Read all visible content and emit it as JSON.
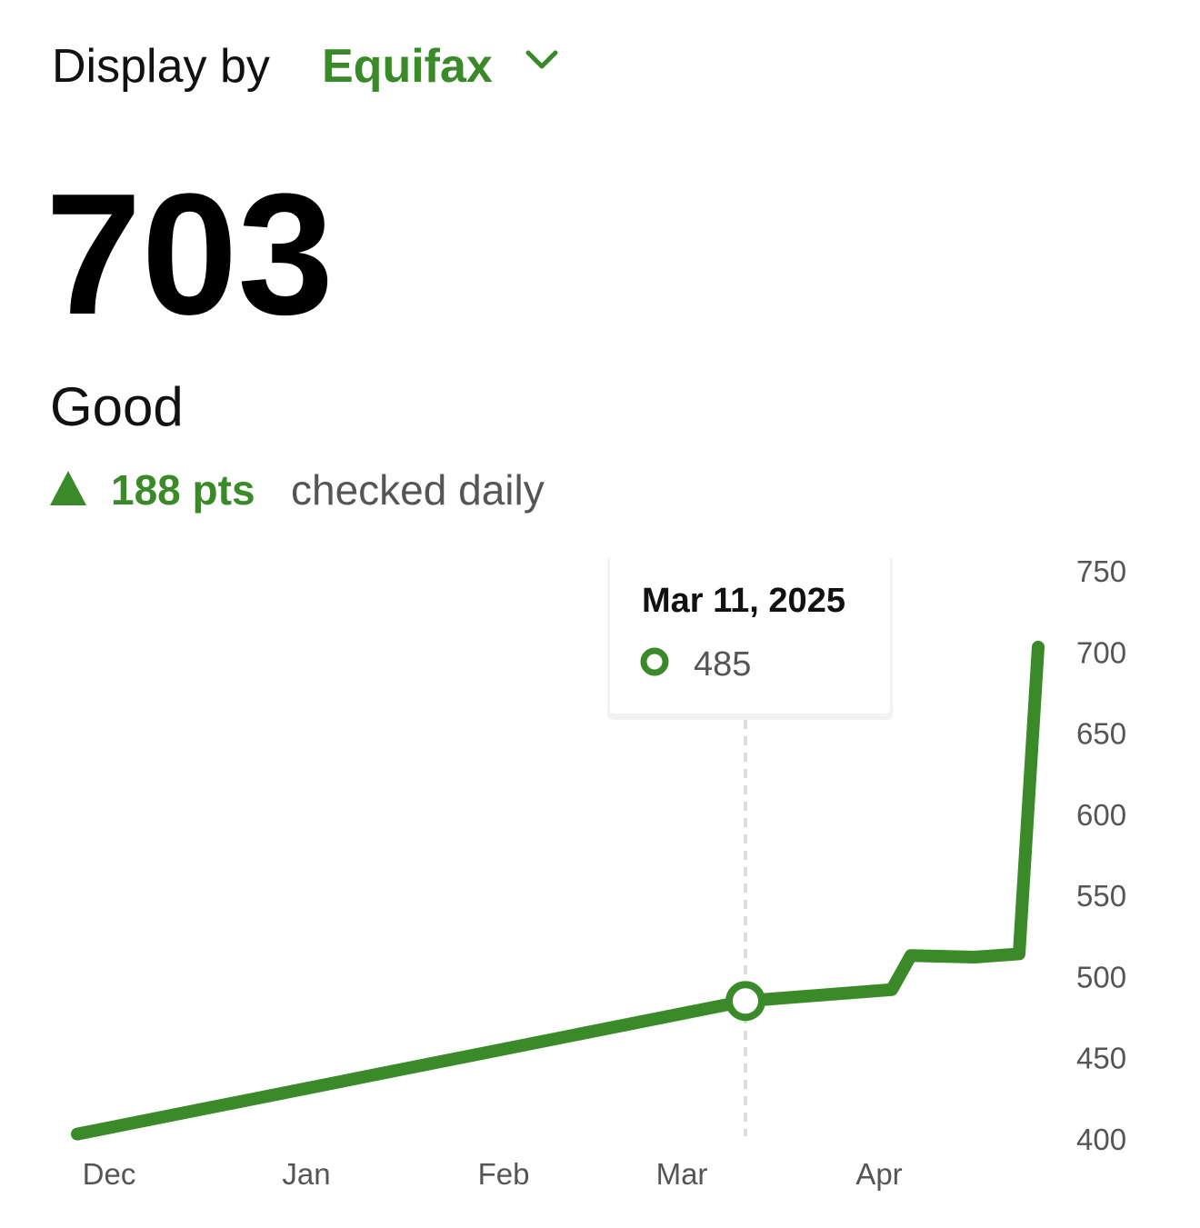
{
  "header": {
    "label": "Display by",
    "provider": "Equifax"
  },
  "score": {
    "value": 703,
    "rating": "Good",
    "change": "188 pts",
    "note": "checked daily"
  },
  "chart_data": {
    "type": "line",
    "x": [
      -5,
      100,
      123,
      126,
      136,
      143,
      146
    ],
    "series": [
      {
        "color": "#3a8a2a",
        "values": [
          403,
          485,
          492,
          513,
          512,
          514,
          703
        ]
      }
    ],
    "xlim": [
      -7,
      150
    ],
    "xticks": [
      {
        "value": 0,
        "label": "Dec"
      },
      {
        "value": 31,
        "label": "Jan"
      },
      {
        "value": 62,
        "label": "Feb"
      },
      {
        "value": 90,
        "label": "Mar"
      },
      {
        "value": 121,
        "label": "Apr"
      }
    ],
    "ylim": [
      400,
      750
    ],
    "yticks": [
      400,
      450,
      500,
      550,
      600,
      650,
      700,
      750
    ],
    "tooltip": {
      "date": "Mar 11, 2025",
      "value": 485,
      "point": 1
    }
  }
}
